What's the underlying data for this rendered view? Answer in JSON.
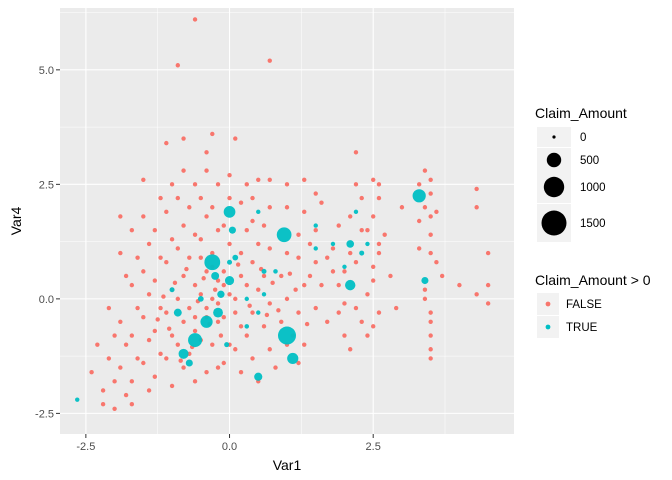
{
  "colors": {
    "panel_bg": "#ebebeb",
    "grid_major": "#ffffff",
    "false_color": "#f8766d",
    "true_color": "#00bfc4",
    "size_key_color": "#000000",
    "legend_key_bg": "#f2f2f2"
  },
  "chart_data": {
    "type": "scatter",
    "xlabel": "Var1",
    "ylabel": "Var4",
    "xlim": [
      -2.95,
      4.95
    ],
    "ylim": [
      -2.95,
      6.35
    ],
    "x_ticks": [
      -2.5,
      0.0,
      2.5
    ],
    "x_tick_labels": [
      "-2.5",
      "0.0",
      "2.5"
    ],
    "y_ticks": [
      -2.5,
      0.0,
      2.5,
      5.0
    ],
    "y_tick_labels": [
      "-2.5",
      "0.0",
      "2.5",
      "5.0"
    ],
    "grid": true,
    "size_legend": {
      "title": "Claim_Amount",
      "breaks": [
        0,
        500,
        1000,
        1500
      ],
      "labels": [
        "0",
        "500",
        "1000",
        "1500"
      ]
    },
    "color_legend": {
      "title": "Claim_Amount > 0",
      "labels": [
        "FALSE",
        "TRUE"
      ]
    },
    "legend_position": "right",
    "series": [
      {
        "name": "FALSE",
        "points": [
          [
            -0.6,
            6.1
          ],
          [
            -0.9,
            5.1
          ],
          [
            0.7,
            5.2
          ],
          [
            -0.3,
            3.6
          ],
          [
            0.1,
            3.5
          ],
          [
            -1.1,
            3.4
          ],
          [
            -0.8,
            3.5
          ],
          [
            -0.4,
            3.2
          ],
          [
            2.2,
            3.2
          ],
          [
            3.4,
            2.8
          ],
          [
            3.3,
            2.5
          ],
          [
            4.3,
            2.4
          ],
          [
            4.3,
            2.0
          ],
          [
            4.5,
            1.0
          ],
          [
            4.5,
            0.3
          ],
          [
            4.3,
            0.1
          ],
          [
            4.5,
            -0.1
          ],
          [
            4.0,
            0.3
          ],
          [
            3.7,
            0.5
          ],
          [
            3.5,
            1.4
          ],
          [
            3.5,
            1.0
          ],
          [
            3.6,
            0.8
          ],
          [
            3.3,
            1.1
          ],
          [
            3.4,
            0.2
          ],
          [
            3.4,
            0.0
          ],
          [
            3.5,
            -0.3
          ],
          [
            3.5,
            -0.5
          ],
          [
            3.5,
            -0.8
          ],
          [
            3.5,
            -1.1
          ],
          [
            3.5,
            -1.3
          ],
          [
            3.5,
            1.8
          ],
          [
            3.4,
            2.0
          ],
          [
            3.6,
            1.9
          ],
          [
            3.5,
            2.6
          ],
          [
            3.3,
            1.7
          ],
          [
            3.5,
            2.3
          ],
          [
            2.5,
            2.6
          ],
          [
            2.6,
            2.5
          ],
          [
            2.6,
            2.2
          ],
          [
            2.5,
            1.8
          ],
          [
            2.4,
            1.5
          ],
          [
            2.6,
            1.2
          ],
          [
            2.6,
            1.0
          ],
          [
            2.5,
            0.7
          ],
          [
            2.5,
            0.4
          ],
          [
            2.4,
            0.1
          ],
          [
            2.6,
            -0.3
          ],
          [
            2.5,
            -0.6
          ],
          [
            2.4,
            -0.8
          ],
          [
            2.3,
            -0.5
          ],
          [
            2.2,
            -0.2
          ],
          [
            2.2,
            0.8
          ],
          [
            2.3,
            1.5
          ],
          [
            2.3,
            2.2
          ],
          [
            2.2,
            2.5
          ],
          [
            2.1,
            1.8
          ],
          [
            2.1,
            1.0
          ],
          [
            2.0,
            0.6
          ],
          [
            2.0,
            -0.1
          ],
          [
            2.0,
            -0.8
          ],
          [
            2.1,
            -1.1
          ],
          [
            1.9,
            0.3
          ],
          [
            1.9,
            1.6
          ],
          [
            1.6,
            2.1
          ],
          [
            1.5,
            1.5
          ],
          [
            1.5,
            0.8
          ],
          [
            1.6,
            0.3
          ],
          [
            1.5,
            -0.2
          ],
          [
            1.4,
            0.5
          ],
          [
            1.4,
            1.2
          ],
          [
            1.7,
            -0.5
          ],
          [
            1.5,
            2.3
          ],
          [
            1.3,
            2.6
          ],
          [
            1.3,
            1.9
          ],
          [
            1.2,
            1.4
          ],
          [
            1.2,
            0.9
          ],
          [
            1.3,
            0.3
          ],
          [
            1.2,
            -0.3
          ],
          [
            1.1,
            -0.8
          ],
          [
            1.3,
            -1.0
          ],
          [
            1.2,
            -1.4
          ],
          [
            1.0,
            2.5
          ],
          [
            1.0,
            2.0
          ],
          [
            1.0,
            1.0
          ],
          [
            0.9,
            0.5
          ],
          [
            1.0,
            0.0
          ],
          [
            0.9,
            -0.5
          ],
          [
            1.0,
            -1.0
          ],
          [
            0.8,
            -1.5
          ],
          [
            0.7,
            2.6
          ],
          [
            0.7,
            2.0
          ],
          [
            0.6,
            1.6
          ],
          [
            0.7,
            1.1
          ],
          [
            0.6,
            0.5
          ],
          [
            0.7,
            -0.1
          ],
          [
            0.6,
            -0.6
          ],
          [
            0.7,
            -1.1
          ],
          [
            0.5,
            -1.8
          ],
          [
            0.5,
            2.6
          ],
          [
            0.4,
            2.2
          ],
          [
            0.4,
            1.7
          ],
          [
            0.5,
            1.2
          ],
          [
            0.4,
            0.8
          ],
          [
            0.5,
            0.2
          ],
          [
            0.4,
            -0.3
          ],
          [
            0.3,
            -0.8
          ],
          [
            0.4,
            -1.3
          ],
          [
            0.3,
            2.5
          ],
          [
            0.2,
            2.1
          ],
          [
            0.3,
            1.5
          ],
          [
            0.2,
            1.0
          ],
          [
            0.2,
            0.5
          ],
          [
            0.1,
            0.0
          ],
          [
            0.2,
            -0.6
          ],
          [
            0.1,
            -1.1
          ],
          [
            0.2,
            -1.6
          ],
          [
            0.0,
            2.7
          ],
          [
            0.0,
            2.2
          ],
          [
            -0.1,
            1.6
          ],
          [
            0.0,
            1.2
          ],
          [
            -0.1,
            0.6
          ],
          [
            0.0,
            0.1
          ],
          [
            -0.1,
            -0.4
          ],
          [
            0.0,
            -1.0
          ],
          [
            -0.1,
            -1.4
          ],
          [
            -0.2,
            2.5
          ],
          [
            -0.3,
            2.0
          ],
          [
            -0.2,
            1.5
          ],
          [
            -0.3,
            1.0
          ],
          [
            -0.2,
            0.4
          ],
          [
            -0.3,
            0.0
          ],
          [
            -0.2,
            -0.5
          ],
          [
            -0.3,
            -1.0
          ],
          [
            -0.2,
            -1.5
          ],
          [
            -0.4,
            2.8
          ],
          [
            -0.5,
            2.2
          ],
          [
            -0.4,
            1.8
          ],
          [
            -0.5,
            1.3
          ],
          [
            -0.4,
            0.6
          ],
          [
            -0.5,
            0.1
          ],
          [
            -0.4,
            -0.4
          ],
          [
            -0.5,
            -0.9
          ],
          [
            -0.4,
            -1.6
          ],
          [
            -0.6,
            2.5
          ],
          [
            -0.7,
            2.0
          ],
          [
            -0.6,
            1.4
          ],
          [
            -0.7,
            0.9
          ],
          [
            -0.6,
            0.3
          ],
          [
            -0.7,
            -0.2
          ],
          [
            -0.6,
            -0.7
          ],
          [
            -0.7,
            -1.2
          ],
          [
            -0.6,
            -1.8
          ],
          [
            -0.8,
            2.8
          ],
          [
            -0.9,
            2.2
          ],
          [
            -0.8,
            1.6
          ],
          [
            -0.9,
            1.1
          ],
          [
            -0.8,
            0.5
          ],
          [
            -0.9,
            0.0
          ],
          [
            -0.8,
            -0.5
          ],
          [
            -0.9,
            -1.0
          ],
          [
            -0.8,
            -1.5
          ],
          [
            -1.0,
            2.5
          ],
          [
            -1.1,
            1.9
          ],
          [
            -1.0,
            1.3
          ],
          [
            -1.1,
            0.8
          ],
          [
            -1.0,
            0.2
          ],
          [
            -1.1,
            -0.3
          ],
          [
            -1.0,
            -0.8
          ],
          [
            -1.1,
            -1.3
          ],
          [
            -1.0,
            -1.9
          ],
          [
            -1.2,
            2.2
          ],
          [
            -1.3,
            1.5
          ],
          [
            -1.2,
            0.9
          ],
          [
            -1.3,
            0.4
          ],
          [
            -1.2,
            -0.2
          ],
          [
            -1.3,
            -0.7
          ],
          [
            -1.2,
            -1.2
          ],
          [
            -1.3,
            -1.7
          ],
          [
            -1.5,
            2.6
          ],
          [
            -1.5,
            1.8
          ],
          [
            -1.4,
            1.2
          ],
          [
            -1.5,
            0.6
          ],
          [
            -1.4,
            0.1
          ],
          [
            -1.5,
            -0.4
          ],
          [
            -1.4,
            -0.9
          ],
          [
            -1.5,
            -1.4
          ],
          [
            -1.4,
            -2.0
          ],
          [
            -1.7,
            1.5
          ],
          [
            -1.6,
            0.9
          ],
          [
            -1.7,
            0.3
          ],
          [
            -1.6,
            -0.2
          ],
          [
            -1.7,
            -0.8
          ],
          [
            -1.6,
            -1.3
          ],
          [
            -1.7,
            -1.8
          ],
          [
            -1.9,
            1.8
          ],
          [
            -1.9,
            1.0
          ],
          [
            -1.8,
            0.5
          ],
          [
            -1.9,
            -0.5
          ],
          [
            -1.8,
            -1.0
          ],
          [
            -1.9,
            -1.5
          ],
          [
            -1.8,
            -2.1
          ],
          [
            -1.7,
            -2.3
          ],
          [
            -2.1,
            -0.2
          ],
          [
            -2.0,
            -0.8
          ],
          [
            -2.1,
            -1.3
          ],
          [
            -2.0,
            -1.8
          ],
          [
            -2.2,
            -2.0
          ],
          [
            -2.0,
            -2.4
          ],
          [
            -2.3,
            -1.0
          ],
          [
            -2.4,
            -1.6
          ],
          [
            -2.2,
            -2.3
          ],
          [
            -0.5,
            0.9
          ],
          [
            -0.3,
            0.7
          ],
          [
            -0.1,
            0.3
          ],
          [
            0.1,
            -0.3
          ],
          [
            -0.4,
            -0.2
          ],
          [
            -0.6,
            -0.4
          ],
          [
            -0.2,
            -0.1
          ],
          [
            0.3,
            0.3
          ],
          [
            -0.45,
            0.45
          ],
          [
            -0.25,
            0.2
          ],
          [
            -0.55,
            -0.05
          ],
          [
            -0.35,
            -0.55
          ],
          [
            -0.15,
            -0.8
          ],
          [
            0.15,
            0.75
          ],
          [
            0.35,
            -0.15
          ],
          [
            0.55,
            0.65
          ],
          [
            0.75,
            0.35
          ],
          [
            0.85,
            -0.25
          ],
          [
            1.05,
            0.55
          ],
          [
            1.15,
            0.2
          ],
          [
            1.35,
            -0.55
          ],
          [
            0.65,
            -0.35
          ],
          [
            -0.75,
            0.65
          ],
          [
            -0.95,
            0.35
          ],
          [
            -1.15,
            0.05
          ],
          [
            -1.25,
            -0.45
          ],
          [
            -1.05,
            -0.65
          ],
          [
            -0.85,
            -1.35
          ],
          [
            -0.65,
            -1.05
          ],
          [
            1.8,
            1.1
          ],
          [
            1.8,
            0.6
          ],
          [
            1.7,
            0.9
          ],
          [
            1.9,
            -0.3
          ],
          [
            2.8,
            0.5
          ],
          [
            2.9,
            -0.2
          ],
          [
            2.7,
            1.4
          ],
          [
            3.0,
            2.0
          ]
        ]
      },
      {
        "name": "TRUE",
        "points": [
          [
            -2.65,
            -2.2,
            30
          ],
          [
            3.3,
            2.25,
            420
          ],
          [
            3.4,
            0.4,
            120
          ],
          [
            2.1,
            0.3,
            260
          ],
          [
            2.1,
            1.2,
            140
          ],
          [
            2.2,
            1.9,
            40
          ],
          [
            2.3,
            1.0,
            60
          ],
          [
            2.4,
            1.2,
            30
          ],
          [
            1.5,
            1.1,
            30
          ],
          [
            1.5,
            1.6,
            30
          ],
          [
            0.95,
            1.4,
            520
          ],
          [
            1.0,
            -0.8,
            780
          ],
          [
            1.1,
            -1.3,
            300
          ],
          [
            0.5,
            -1.7,
            160
          ],
          [
            0.6,
            0.6,
            60
          ],
          [
            0.6,
            0.1,
            40
          ],
          [
            0.5,
            -0.3,
            30
          ],
          [
            0.5,
            1.9,
            40
          ],
          [
            0.0,
            1.9,
            330
          ],
          [
            0.05,
            1.5,
            120
          ],
          [
            0.1,
            0.9,
            80
          ],
          [
            0.0,
            0.4,
            200
          ],
          [
            0.0,
            0.8,
            60
          ],
          [
            -0.15,
            0.1,
            130
          ],
          [
            -0.2,
            -0.3,
            230
          ],
          [
            -0.3,
            0.8,
            600
          ],
          [
            -0.25,
            0.5,
            150
          ],
          [
            -0.4,
            -0.5,
            360
          ],
          [
            -0.6,
            -0.9,
            470
          ],
          [
            -0.8,
            -1.2,
            240
          ],
          [
            -0.7,
            -1.4,
            120
          ],
          [
            -0.9,
            -0.3,
            150
          ],
          [
            -1.0,
            0.2,
            60
          ],
          [
            -0.5,
            0.0,
            80
          ],
          [
            0.3,
            -0.6,
            50
          ],
          [
            0.8,
            0.6,
            50
          ],
          [
            1.8,
            1.2,
            30
          ],
          [
            2.0,
            0.7,
            40
          ],
          [
            -0.05,
            -1.0,
            60
          ],
          [
            0.3,
            0.0,
            40
          ]
        ]
      }
    ]
  }
}
